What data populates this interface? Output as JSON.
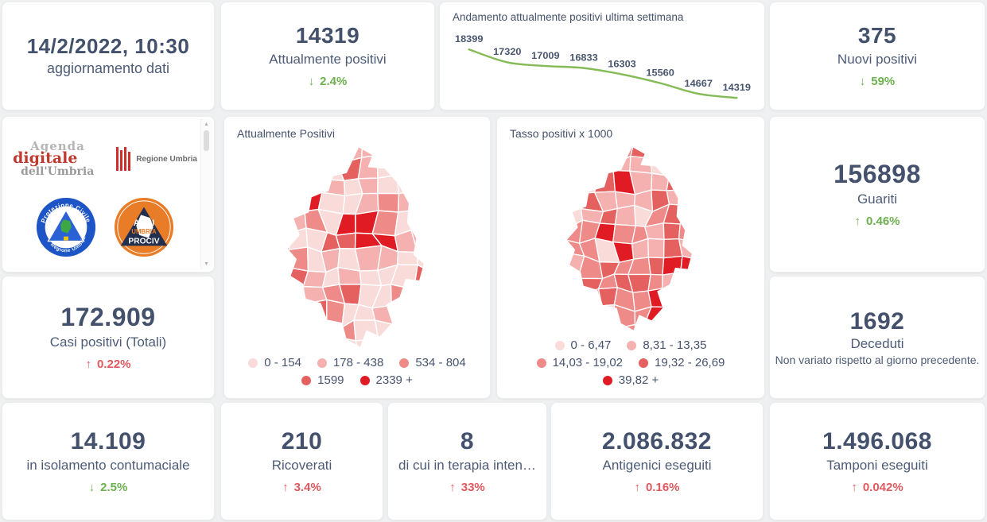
{
  "page": {
    "background": "#eef0f2",
    "card_background": "#ffffff"
  },
  "colors": {
    "value_text": "#44516c",
    "label_text": "#4d5b76",
    "delta_green": "#6db14f",
    "delta_red": "#e0595e",
    "chart_line_green": "#85bb56",
    "map_palette": [
      "#f9dbda",
      "#f4b1b0",
      "#ee8a88",
      "#e56160",
      "#e01b24"
    ]
  },
  "update_card": {
    "datetime": "14/2/2022, 10:30",
    "caption": "aggiornamento dati"
  },
  "kpis": {
    "attualmente_positivi": {
      "value": "14319",
      "label": "Attualmente positivi",
      "arrow": "↓",
      "delta": "2.4%",
      "sentiment": "green"
    },
    "nuovi_positivi": {
      "value": "375",
      "label": "Nuovi positivi",
      "arrow": "↓",
      "delta": "59%",
      "sentiment": "green"
    },
    "casi_totali": {
      "value": "172.909",
      "label": "Casi positivi (Totali)",
      "arrow": "↑",
      "delta": "0.22%",
      "sentiment": "red"
    },
    "guariti": {
      "value": "156898",
      "label": "Guariti",
      "arrow": "↑",
      "delta": "0.46%",
      "sentiment": "green"
    },
    "deceduti": {
      "value": "1692",
      "label": "Deceduti",
      "note": "Non variato rispetto al giorno precedente."
    },
    "isolamento": {
      "value": "14.109",
      "label": "in isolamento contumaciale",
      "arrow": "↓",
      "delta": "2.5%",
      "sentiment": "green"
    },
    "ricoverati": {
      "value": "210",
      "label": "Ricoverati",
      "arrow": "↑",
      "delta": "3.4%",
      "sentiment": "red"
    },
    "terapia_intensiva": {
      "value": "8",
      "label": "di cui in terapia inten…",
      "arrow": "↑",
      "delta": "33%",
      "sentiment": "red"
    },
    "antigenici": {
      "value": "2.086.832",
      "label": "Antigenici eseguiti",
      "arrow": "↑",
      "delta": "0.16%",
      "sentiment": "red"
    },
    "tamponi": {
      "value": "1.496.068",
      "label": "Tamponi eseguiti",
      "arrow": "↑",
      "delta": "0.042%",
      "sentiment": "red"
    }
  },
  "chart_data": [
    {
      "type": "line",
      "title": "Andamento attualmente positivi ultima settimana",
      "values": [
        18399,
        17320,
        17009,
        16833,
        16303,
        15560,
        14667,
        14319
      ],
      "data_labels": [
        "18399",
        "17320",
        "17009",
        "16833",
        "16303",
        "15560",
        "14667",
        "14319"
      ],
      "xlabel": "",
      "ylabel": "",
      "ylim": [
        14000,
        18600
      ],
      "grid": false,
      "legend_position": "none",
      "line_color": "#85bb56",
      "label_color": "#4a5670"
    },
    {
      "type": "heatmap",
      "variant": "choropleth-map",
      "region": "Umbria",
      "title": "Attualmente Positivi",
      "legend": [
        {
          "label": "0 - 154",
          "color": "#f9dbda"
        },
        {
          "label": "178 - 438",
          "color": "#f4b1b0"
        },
        {
          "label": "534 - 804",
          "color": "#ee8a88"
        },
        {
          "label": "1599",
          "color": "#e56160"
        },
        {
          "label": "2339 +",
          "color": "#e01b24"
        }
      ]
    },
    {
      "type": "heatmap",
      "variant": "choropleth-map",
      "region": "Umbria",
      "title": "Tasso positivi x 1000",
      "legend": [
        {
          "label": "0 - 6,47",
          "color": "#f9dbda"
        },
        {
          "label": "8,31 - 13,35",
          "color": "#f4b1b0"
        },
        {
          "label": "14,03 - 19,02",
          "color": "#ee8a88"
        },
        {
          "label": "19,32 - 26,69",
          "color": "#e56160"
        },
        {
          "label": "39,82 +",
          "color": "#e01b24"
        }
      ]
    }
  ],
  "logos": {
    "agenda_digitale": {
      "line1": "Agenda",
      "line2": "digitale",
      "line3": "dell'Umbria"
    },
    "regione_umbria": {
      "name": "Regione Umbria"
    },
    "protezione_civile": {
      "top_text": "Protezione Civile",
      "bottom_text": "Regione Umbria"
    },
    "anci_prociv": {
      "line1": "ANCI",
      "line2": "UMBRIA",
      "line3": "PROCIV"
    },
    "scroll_up": "▲",
    "scroll_down": "▼"
  }
}
